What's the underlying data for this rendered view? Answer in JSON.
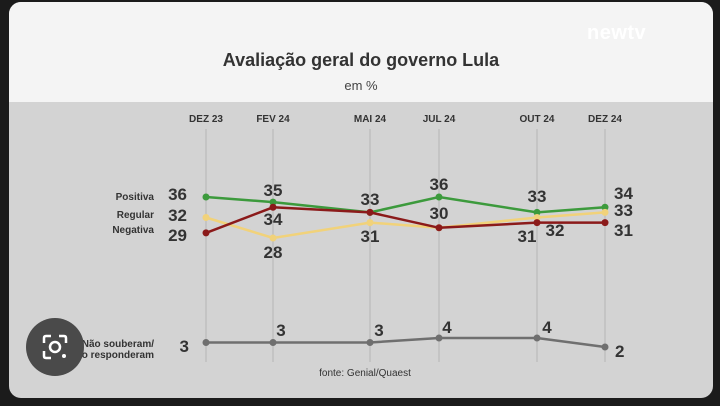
{
  "header": {
    "title": "Avaliação geral do governo Lula",
    "subtitle": "em %",
    "logo": "newtv"
  },
  "chart_data": {
    "type": "line",
    "title": "Avaliação geral do governo Lula",
    "subtitle": "em %",
    "categories": [
      "DEZ 23",
      "FEV 24",
      "MAI 24",
      "JUL 24",
      "OUT 24",
      "DEZ 24"
    ],
    "series": [
      {
        "name": "Positiva",
        "color": "#3c9a3c",
        "values": [
          36,
          35,
          33,
          36,
          33,
          34
        ]
      },
      {
        "name": "Regular",
        "color": "#f1d27a",
        "values": [
          32,
          28,
          31,
          30,
          32,
          33
        ]
      },
      {
        "name": "Negativa",
        "color": "#8b1a1a",
        "values": [
          29,
          34,
          33,
          30,
          31,
          31
        ]
      },
      {
        "name": "Não souberam/ não responderam",
        "color": "#6f6f6f",
        "values": [
          3,
          3,
          3,
          4,
          4,
          2
        ]
      }
    ],
    "labels_display": {
      "top": [
        "36",
        "35",
        "33",
        "36",
        "33",
        "34"
      ],
      "middle": [
        "32",
        "34",
        "",
        "30",
        "32",
        "33"
      ],
      "bottom": [
        "29",
        "28",
        "31",
        "",
        "31",
        "31"
      ],
      "nsr": [
        "3",
        "3",
        "3",
        "4",
        "4",
        "2"
      ]
    },
    "legend_left": [
      "Positiva",
      "Regular",
      "Negativa"
    ],
    "nsr_label": [
      "Não souberam/",
      "não responderam"
    ],
    "source": "fonte: Genial/Quaest",
    "grid": false,
    "legend": "left"
  }
}
